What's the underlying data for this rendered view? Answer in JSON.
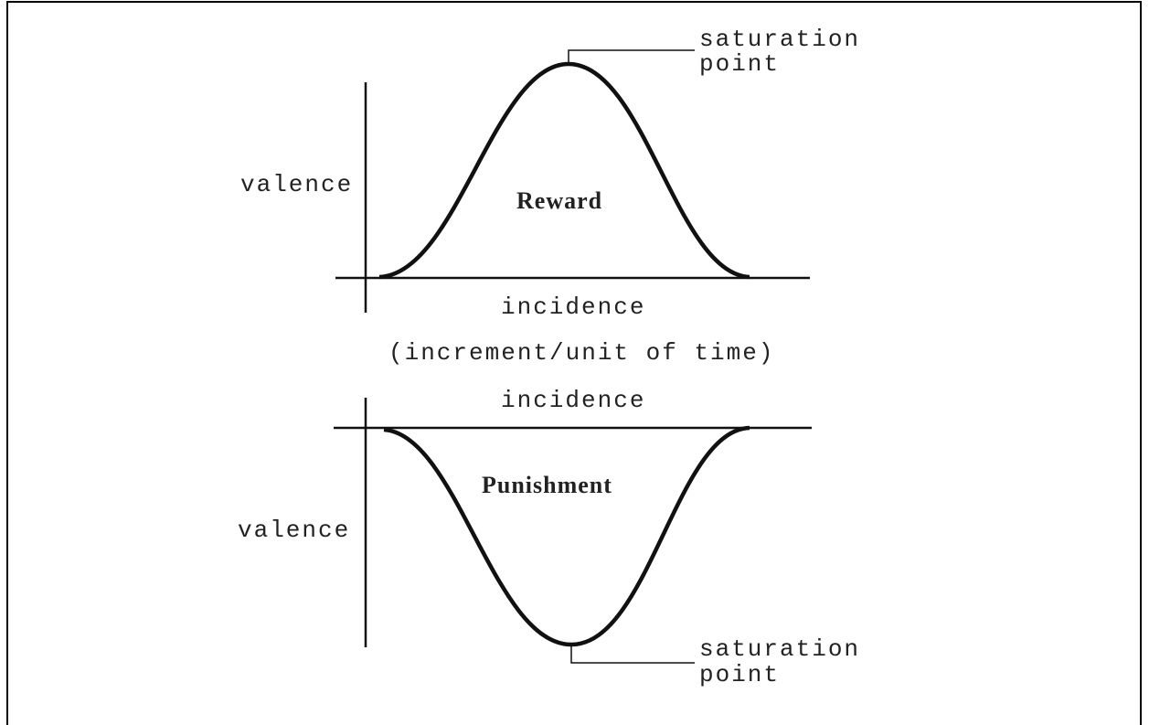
{
  "reward_chart": {
    "label": "Reward",
    "y_axis_label": "valence",
    "x_axis_label": "incidence",
    "annotation": [
      "saturation",
      "point"
    ]
  },
  "caption": "(increment/unit of time)",
  "punishment_chart": {
    "label": "Punishment",
    "y_axis_label": "valence",
    "x_axis_label": "incidence",
    "annotation": [
      "saturation",
      "point"
    ]
  }
}
